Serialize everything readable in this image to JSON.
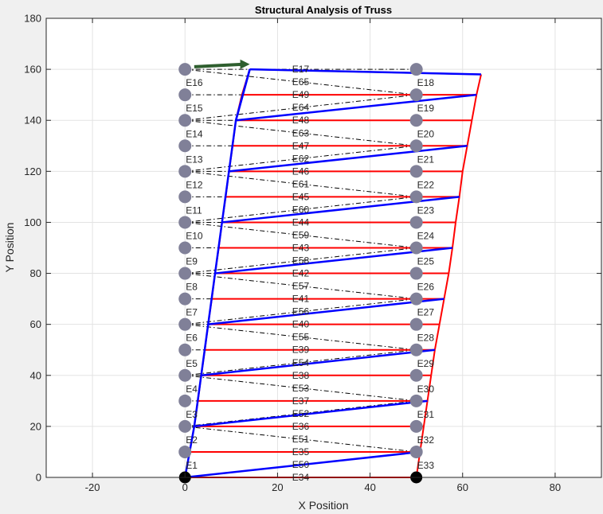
{
  "chart_data": {
    "type": "truss",
    "title": "Structural Analysis of Truss",
    "xlabel": "X Position",
    "ylabel": "Y Position",
    "xlim": [
      -30,
      90
    ],
    "ylim": [
      0,
      180
    ],
    "xticks": [
      -20,
      0,
      20,
      40,
      60,
      80
    ],
    "yticks": [
      0,
      20,
      40,
      60,
      80,
      100,
      120,
      140,
      160,
      180
    ],
    "grid": true,
    "colors": {
      "original_member": "#000000",
      "deformed_diagonal": "#0000ff",
      "deformed_horizontal": "#ff0000",
      "node": "#808098",
      "support": "#000000",
      "load_arrow": "#2e5e2e"
    },
    "nodes_left_x": 0,
    "nodes_right_x": 50,
    "node_y": [
      0,
      10,
      20,
      30,
      40,
      50,
      60,
      70,
      80,
      90,
      100,
      110,
      120,
      130,
      140,
      150,
      160
    ],
    "supports": [
      [
        0,
        0
      ],
      [
        50,
        0
      ]
    ],
    "load_arrow": {
      "from": [
        2,
        161
      ],
      "to": [
        14,
        162
      ]
    },
    "deformed_left_x": [
      0,
      1,
      2,
      2.8,
      3.5,
      4.3,
      5,
      5.8,
      6.5,
      7.3,
      8,
      8.8,
      9.5,
      10.3,
      11,
      12.3,
      14
    ],
    "deformed_right_x": [
      50,
      50.8,
      51.6,
      52.4,
      53.2,
      54,
      55,
      56,
      57,
      57.8,
      58.5,
      59.3,
      60,
      61,
      62,
      63,
      64
    ],
    "deformed_right_y": [
      0,
      10,
      20,
      30,
      40,
      50,
      60,
      70,
      80,
      90,
      100,
      110,
      120,
      130,
      140,
      150,
      158
    ],
    "diagonals": [
      [
        0,
        1
      ],
      [
        2,
        1
      ],
      [
        2,
        3
      ],
      [
        4,
        3
      ],
      [
        4,
        5
      ],
      [
        6,
        5
      ],
      [
        6,
        7
      ],
      [
        8,
        7
      ],
      [
        8,
        9
      ],
      [
        10,
        9
      ],
      [
        10,
        11
      ],
      [
        12,
        11
      ],
      [
        12,
        13
      ],
      [
        14,
        13
      ],
      [
        14,
        15
      ],
      [
        16,
        15
      ]
    ],
    "left_labels": [
      "E1",
      "E2",
      "E3",
      "E4",
      "E5",
      "E6",
      "E7",
      "E8",
      "E9",
      "E10",
      "E11",
      "E12",
      "E13",
      "E14",
      "E15",
      "E16"
    ],
    "right_labels": [
      "E33",
      "E32",
      "E31",
      "E30",
      "E29",
      "E28",
      "E27",
      "E26",
      "E25",
      "E24",
      "E23",
      "E22",
      "E21",
      "E20",
      "E19",
      "E18"
    ],
    "top_label": "E17",
    "horizontal_labels": [
      "E34",
      "E35",
      "E36",
      "E37",
      "E38",
      "E39",
      "E40",
      "E41",
      "E42",
      "E43",
      "E44",
      "E45",
      "E46",
      "E47",
      "E48",
      "E49"
    ],
    "diagonal_labels": [
      "E50",
      "E51",
      "E52",
      "E53",
      "E54",
      "E55",
      "E56",
      "E57",
      "E58",
      "E59",
      "E60",
      "E61",
      "E62",
      "E63",
      "E64",
      "E65"
    ]
  }
}
